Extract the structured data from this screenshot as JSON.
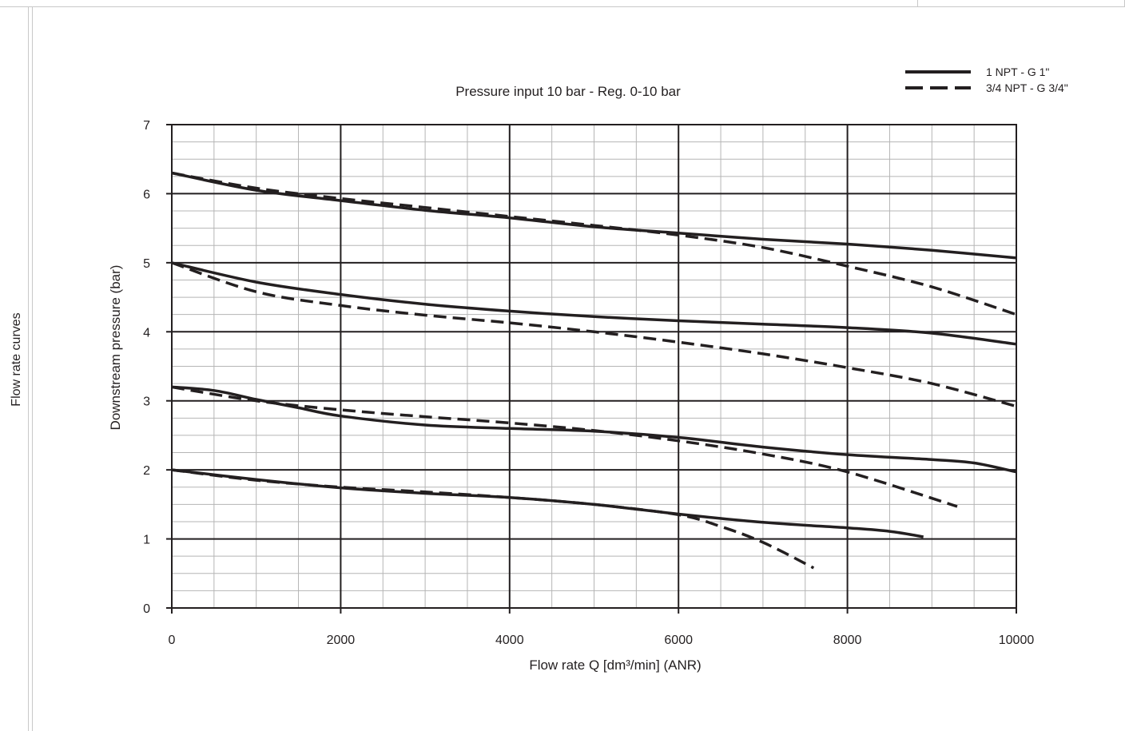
{
  "sidebar": {
    "label": "Flow rate curves"
  },
  "chart_data": {
    "type": "line",
    "title": "Pressure  input 10 bar - Reg. 0-10 bar",
    "xlabel": "Flow rate Q [dm³/min] (ANR)",
    "ylabel": "Downstream pressure (bar)",
    "xlim": [
      0,
      10000
    ],
    "ylim": [
      0,
      7
    ],
    "x_ticks": [
      0,
      2000,
      4000,
      6000,
      8000,
      10000
    ],
    "y_ticks": [
      0,
      1,
      2,
      3,
      4,
      5,
      6,
      7
    ],
    "grid": true,
    "legend_position": "top-right",
    "legend": [
      {
        "label": "1 NPT - G 1\"",
        "style": "solid"
      },
      {
        "label": "3/4 NPT - G 3/4\"",
        "style": "dashed"
      }
    ],
    "series": [
      {
        "legend": 0,
        "style": "solid",
        "x": [
          0,
          1000,
          2000,
          3000,
          4000,
          5000,
          6000,
          7000,
          8000,
          9000,
          10000
        ],
        "y": [
          6.3,
          6.05,
          5.9,
          5.76,
          5.65,
          5.52,
          5.43,
          5.34,
          5.27,
          5.18,
          5.07
        ]
      },
      {
        "legend": 1,
        "style": "dashed",
        "x": [
          0,
          1000,
          2000,
          3000,
          4000,
          5000,
          6000,
          7000,
          8000,
          9000,
          10000
        ],
        "y": [
          6.3,
          6.08,
          5.93,
          5.8,
          5.67,
          5.54,
          5.4,
          5.22,
          4.95,
          4.65,
          4.25
        ]
      },
      {
        "legend": 0,
        "style": "solid",
        "x": [
          0,
          1000,
          2000,
          3000,
          4000,
          5000,
          6000,
          7000,
          8000,
          9000,
          10000
        ],
        "y": [
          5.0,
          4.72,
          4.54,
          4.4,
          4.3,
          4.22,
          4.16,
          4.11,
          4.06,
          3.98,
          3.82
        ]
      },
      {
        "legend": 1,
        "style": "dashed",
        "x": [
          0,
          1000,
          2000,
          3000,
          4000,
          5000,
          6000,
          7000,
          8000,
          9000,
          10000
        ],
        "y": [
          5.0,
          4.58,
          4.38,
          4.24,
          4.13,
          4.0,
          3.85,
          3.68,
          3.48,
          3.25,
          2.92
        ]
      },
      {
        "legend": 0,
        "style": "solid",
        "x": [
          0,
          500,
          1000,
          1500,
          2000,
          3000,
          4000,
          5000,
          6000,
          7000,
          8000,
          9000,
          9500,
          10000
        ],
        "y": [
          3.2,
          3.15,
          3.02,
          2.9,
          2.78,
          2.65,
          2.6,
          2.56,
          2.47,
          2.33,
          2.22,
          2.15,
          2.1,
          1.97
        ]
      },
      {
        "legend": 1,
        "style": "dashed",
        "x": [
          0,
          1000,
          2000,
          3000,
          4000,
          5000,
          6000,
          7000,
          8000,
          9300
        ],
        "y": [
          3.2,
          3.0,
          2.87,
          2.77,
          2.68,
          2.57,
          2.42,
          2.23,
          1.97,
          1.47
        ]
      },
      {
        "legend": 0,
        "style": "solid",
        "x": [
          0,
          1000,
          2000,
          3000,
          4000,
          5000,
          6000,
          7000,
          8000,
          8500,
          8900
        ],
        "y": [
          2.0,
          1.86,
          1.74,
          1.66,
          1.6,
          1.5,
          1.36,
          1.24,
          1.16,
          1.11,
          1.03
        ]
      },
      {
        "legend": 1,
        "style": "dashed",
        "x": [
          0,
          1000,
          2000,
          3000,
          4000,
          5000,
          6000,
          6500,
          7000,
          7600
        ],
        "y": [
          2.0,
          1.85,
          1.75,
          1.68,
          1.6,
          1.5,
          1.35,
          1.18,
          0.95,
          0.58
        ]
      }
    ]
  }
}
